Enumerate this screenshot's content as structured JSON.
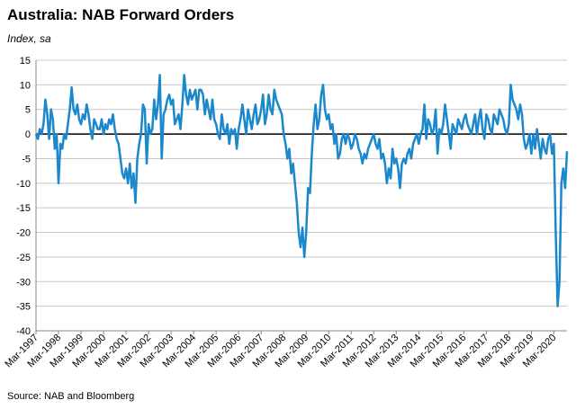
{
  "chart_data": {
    "type": "line",
    "title": "Australia: NAB Forward Orders",
    "subtitle": "Index, sa",
    "source": "Source: NAB and Bloomberg",
    "color": "#1b87cc",
    "grid": true,
    "ylim": [
      -40,
      15
    ],
    "yticks": [
      -40,
      -35,
      -30,
      -25,
      -20,
      -15,
      -10,
      -5,
      0,
      5,
      10,
      15
    ],
    "categories": [
      "Mar-1997",
      null,
      null,
      null,
      null,
      null,
      null,
      null,
      null,
      null,
      null,
      null,
      "Mar-1998",
      null,
      null,
      null,
      null,
      null,
      null,
      null,
      null,
      null,
      null,
      null,
      "Mar-1999",
      null,
      null,
      null,
      null,
      null,
      null,
      null,
      null,
      null,
      null,
      null,
      "Mar-2000",
      null,
      null,
      null,
      null,
      null,
      null,
      null,
      null,
      null,
      null,
      null,
      "Mar-2001",
      null,
      null,
      null,
      null,
      null,
      null,
      null,
      null,
      null,
      null,
      null,
      "Mar-2002",
      null,
      null,
      null,
      null,
      null,
      null,
      null,
      null,
      null,
      null,
      null,
      "Mar-2003",
      null,
      null,
      null,
      null,
      null,
      null,
      null,
      null,
      null,
      null,
      null,
      "Mar-2004",
      null,
      null,
      null,
      null,
      null,
      null,
      null,
      null,
      null,
      null,
      null,
      "Mar-2005",
      null,
      null,
      null,
      null,
      null,
      null,
      null,
      null,
      null,
      null,
      null,
      "Mar-2006",
      null,
      null,
      null,
      null,
      null,
      null,
      null,
      null,
      null,
      null,
      null,
      "Mar-2007",
      null,
      null,
      null,
      null,
      null,
      null,
      null,
      null,
      null,
      null,
      null,
      "Mar-2008",
      null,
      null,
      null,
      null,
      null,
      null,
      null,
      null,
      null,
      null,
      null,
      "Mar-2009",
      null,
      null,
      null,
      null,
      null,
      null,
      null,
      null,
      null,
      null,
      null,
      "Mar-2010",
      null,
      null,
      null,
      null,
      null,
      null,
      null,
      null,
      null,
      null,
      null,
      "Mar-2011",
      null,
      null,
      null,
      null,
      null,
      null,
      null,
      null,
      null,
      null,
      null,
      "Mar-2012",
      null,
      null,
      null,
      null,
      null,
      null,
      null,
      null,
      null,
      null,
      null,
      "Mar-2013",
      null,
      null,
      null,
      null,
      null,
      null,
      null,
      null,
      null,
      null,
      null,
      "Mar-2014",
      null,
      null,
      null,
      null,
      null,
      null,
      null,
      null,
      null,
      null,
      null,
      "Mar-2015",
      null,
      null,
      null,
      null,
      null,
      null,
      null,
      null,
      null,
      null,
      null,
      "Mar-2016",
      null,
      null,
      null,
      null,
      null,
      null,
      null,
      null,
      null,
      null,
      null,
      "Mar-2017",
      null,
      null,
      null,
      null,
      null,
      null,
      null,
      null,
      null,
      null,
      null,
      "Mar-2018",
      null,
      null,
      null,
      null,
      null,
      null,
      null,
      null,
      null,
      null,
      null,
      "Mar-2019",
      null,
      null,
      null,
      null,
      null,
      null,
      null,
      null,
      null,
      null,
      null,
      "Mar-2020",
      null,
      null,
      null,
      null,
      null,
      null,
      null
    ],
    "values": [
      0,
      -1,
      1,
      0,
      2,
      7,
      4,
      -1,
      5,
      3,
      -3,
      0,
      -10,
      -2,
      -3,
      0,
      -1,
      2,
      5,
      9.5,
      5,
      4,
      6,
      3,
      2,
      4,
      3,
      6,
      4,
      1,
      -1,
      3,
      2,
      1,
      1,
      3,
      0,
      2,
      1,
      3,
      2,
      4,
      1,
      -1,
      -2,
      -5,
      -8,
      -9,
      -7,
      -10,
      -6,
      -11,
      -8,
      -14,
      -5,
      -2,
      0,
      6,
      5,
      -6,
      2,
      0,
      1,
      7,
      3,
      6,
      12,
      -5,
      4,
      5,
      7,
      8,
      6,
      7,
      2,
      3,
      4,
      1,
      6,
      12,
      8,
      6,
      9,
      7,
      8,
      9,
      5,
      9,
      9,
      8,
      4,
      7,
      5,
      3,
      7,
      3,
      2,
      0,
      -1,
      4,
      1,
      0,
      2,
      -2,
      1,
      0,
      1,
      -3,
      1,
      3,
      6,
      3,
      0,
      5,
      3,
      1,
      4,
      6,
      2,
      3,
      5,
      8,
      2,
      4,
      8,
      5,
      4,
      9,
      7,
      6,
      5,
      4,
      0,
      -2,
      -5,
      -3,
      -8,
      -6,
      -10,
      -14,
      -20,
      -23,
      -19,
      -25,
      -20,
      -11,
      -12,
      -4,
      2,
      6,
      1,
      3,
      8,
      10,
      5,
      3,
      4,
      1,
      2,
      -2,
      0,
      -5,
      -4,
      -1,
      0,
      -2,
      0,
      -1,
      -3,
      -2,
      0,
      -1,
      -3,
      -4,
      -6,
      -4,
      -5,
      -3,
      -2,
      -1,
      0,
      -2,
      -3,
      -1,
      -5,
      -4,
      -6,
      -10,
      -7,
      -9,
      -3,
      -6,
      -5,
      -7,
      -11,
      -6,
      -5,
      -6,
      -4,
      -3,
      -5,
      -2,
      -1,
      0,
      -2,
      0,
      1,
      6,
      -1,
      3,
      2,
      0,
      1,
      5,
      -4,
      1,
      0,
      2,
      6,
      3,
      0,
      -3,
      2,
      1,
      0,
      3,
      2,
      1,
      3,
      4,
      2,
      1,
      0,
      2,
      4,
      0,
      3,
      5,
      1,
      -1,
      4,
      3,
      1,
      0,
      4,
      3,
      2,
      5,
      4,
      3,
      1,
      0,
      2,
      10,
      7,
      6,
      5,
      3,
      6,
      4,
      -1,
      -3,
      -2,
      0,
      -4,
      0,
      -3,
      1,
      -2,
      -5,
      -1,
      -3,
      -4,
      -1,
      0,
      -4,
      -2,
      -20,
      -35,
      -30,
      -10,
      -7,
      -11,
      -3.5
    ]
  }
}
